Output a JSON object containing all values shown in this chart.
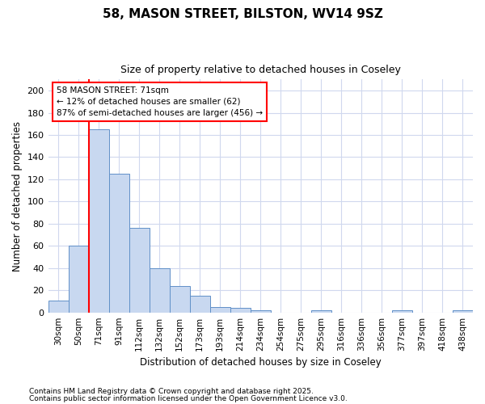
{
  "title1": "58, MASON STREET, BILSTON, WV14 9SZ",
  "title2": "Size of property relative to detached houses in Coseley",
  "xlabel": "Distribution of detached houses by size in Coseley",
  "ylabel": "Number of detached properties",
  "categories": [
    "30sqm",
    "50sqm",
    "71sqm",
    "91sqm",
    "112sqm",
    "132sqm",
    "152sqm",
    "173sqm",
    "193sqm",
    "214sqm",
    "234sqm",
    "254sqm",
    "275sqm",
    "295sqm",
    "316sqm",
    "336sqm",
    "356sqm",
    "377sqm",
    "397sqm",
    "418sqm",
    "438sqm"
  ],
  "values": [
    11,
    60,
    165,
    125,
    76,
    40,
    24,
    15,
    5,
    4,
    2,
    0,
    0,
    2,
    0,
    0,
    0,
    2,
    0,
    0,
    2
  ],
  "bar_color": "#c8d8f0",
  "bar_edge_color": "#6090c8",
  "redline_index": 2,
  "ylim": [
    0,
    210
  ],
  "yticks": [
    0,
    20,
    40,
    60,
    80,
    100,
    120,
    140,
    160,
    180,
    200
  ],
  "annotation_title": "58 MASON STREET: 71sqm",
  "annotation_line1": "← 12% of detached houses are smaller (62)",
  "annotation_line2": "87% of semi-detached houses are larger (456) →",
  "footnote1": "Contains HM Land Registry data © Crown copyright and database right 2025.",
  "footnote2": "Contains public sector information licensed under the Open Government Licence v3.0.",
  "background_color": "#ffffff",
  "plot_bg_color": "#ffffff",
  "grid_color": "#d0d8ee"
}
